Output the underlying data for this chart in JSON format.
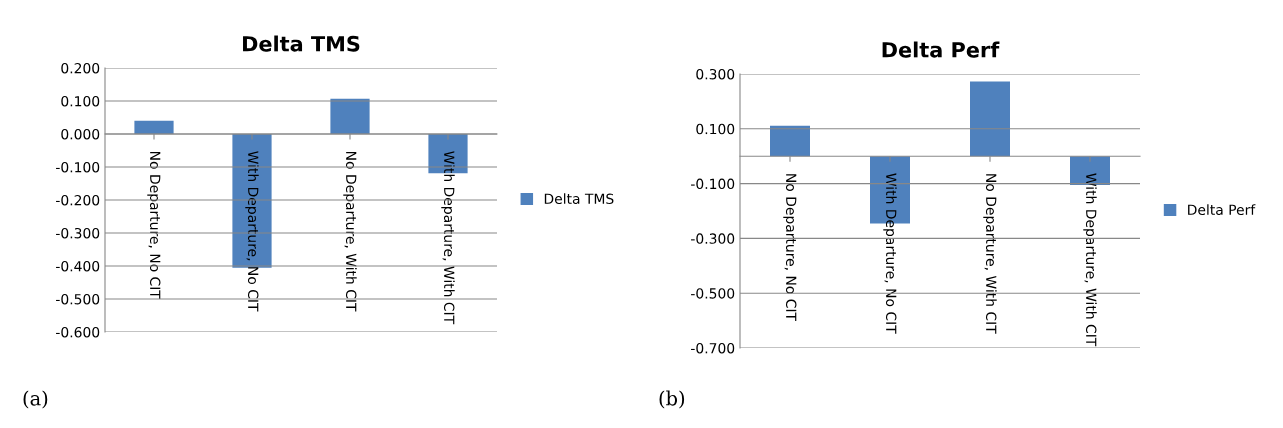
{
  "chart_data": [
    {
      "type": "bar",
      "title": "Delta TMS",
      "categories": [
        "No Departure, No CIT",
        "With Departure, No CIT",
        "No Departure, With CIT",
        "With Departure, With CIT"
      ],
      "series": [
        {
          "name": "Delta TMS",
          "color": "#4f81bd",
          "values": [
            0.04,
            -0.405,
            0.107,
            -0.119
          ]
        }
      ],
      "ylim": [
        -0.6,
        0.2
      ],
      "yticks": [
        {
          "value": 0.2,
          "label": "0.200"
        },
        {
          "value": 0.1,
          "label": "0.100"
        },
        {
          "value": 0,
          "label": "0.000"
        },
        {
          "value": -0.1,
          "label": "-0.100"
        },
        {
          "value": -0.2,
          "label": "-0.200"
        },
        {
          "value": -0.3,
          "label": "-0.300"
        },
        {
          "value": -0.4,
          "label": "-0.400"
        },
        {
          "value": -0.5,
          "label": "-0.500"
        },
        {
          "value": -0.6,
          "label": "-0.600"
        }
      ],
      "grid": "y",
      "legend": "right",
      "annotations": [
        "(a)"
      ]
    },
    {
      "type": "bar",
      "title": "Delta Perf",
      "categories": [
        "No Departure, No CIT",
        "With Departure, No CIT",
        "No Departure, With CIT",
        "With Departure, With CIT"
      ],
      "series": [
        {
          "name": "Delta Perf",
          "color": "#4f81bd",
          "values": [
            0.111,
            -0.246,
            0.273,
            -0.105
          ]
        }
      ],
      "ylim": [
        -0.7,
        0.3
      ],
      "yticks": [
        {
          "value": 0.3,
          "label": "0.300"
        },
        {
          "value": 0.1,
          "label": "0.100"
        },
        {
          "value": -0.1,
          "label": "-0.100"
        },
        {
          "value": -0.3,
          "label": "-0.300"
        },
        {
          "value": -0.5,
          "label": "-0.500"
        },
        {
          "value": -0.7,
          "label": "-0.700"
        }
      ],
      "grid": "y",
      "legend": "right",
      "annotations": [
        "(b)"
      ]
    }
  ]
}
